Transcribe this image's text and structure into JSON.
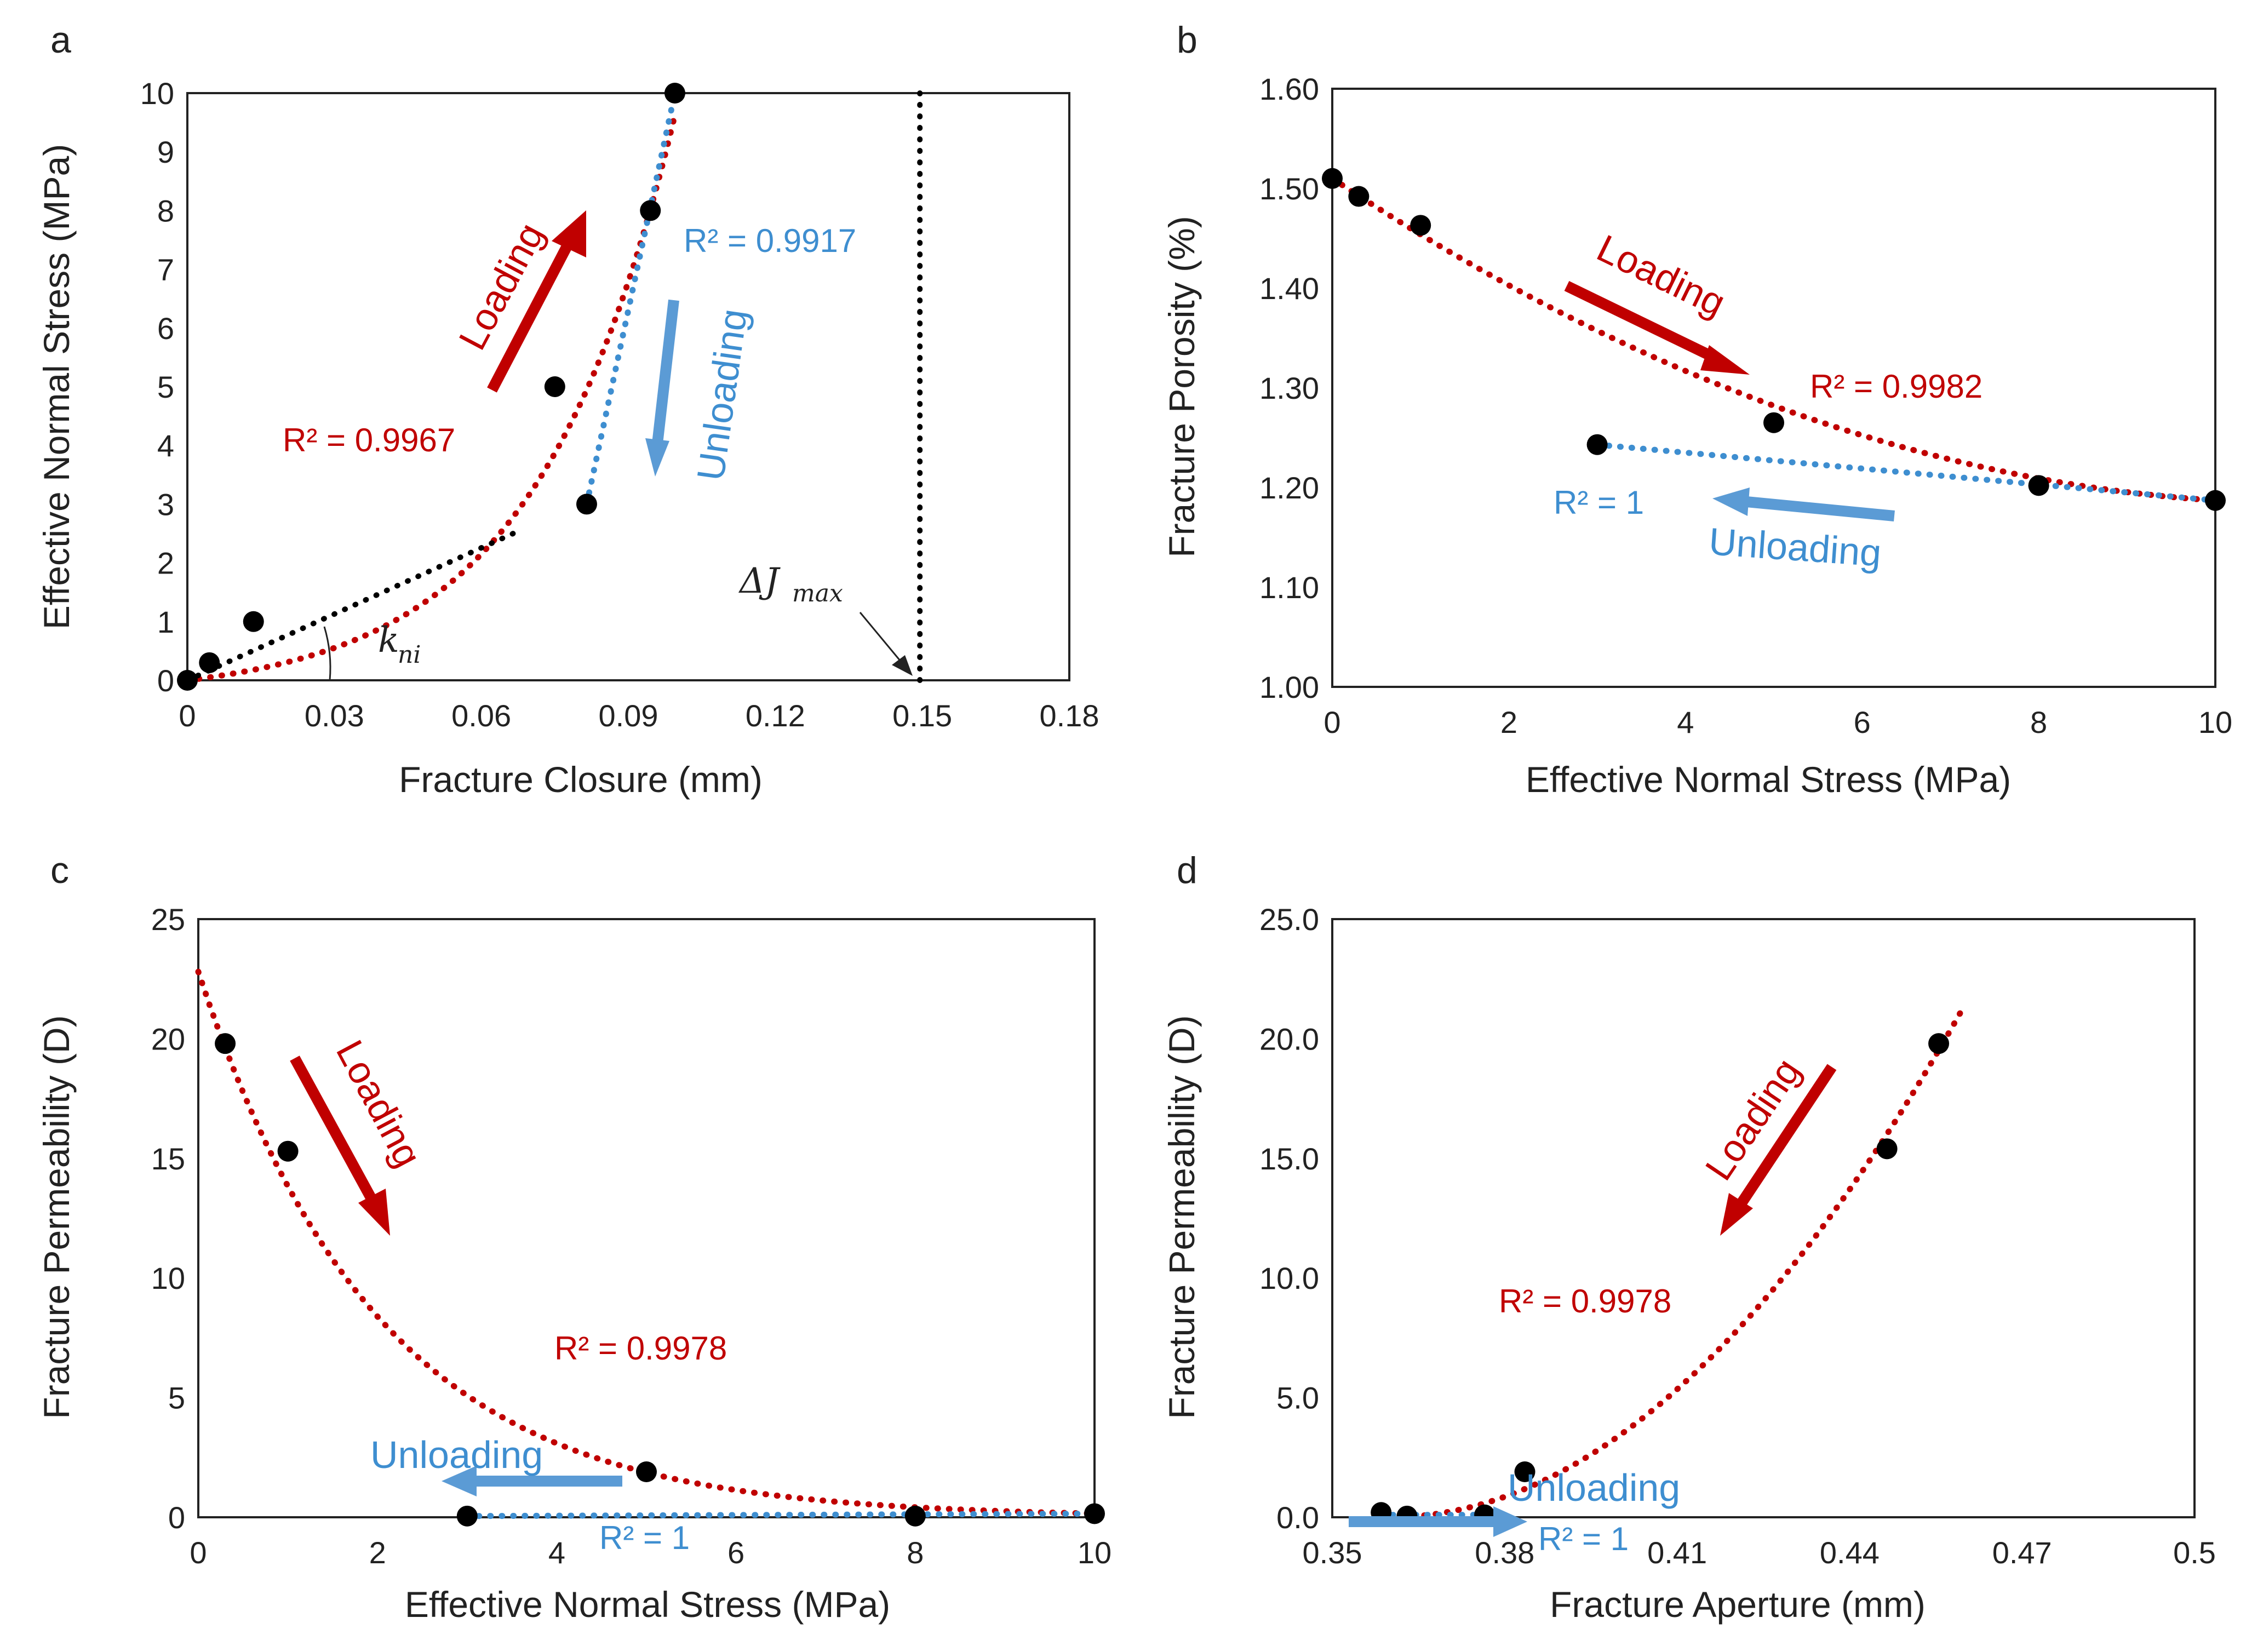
{
  "colors": {
    "loading": "#C00000",
    "unloading": "#3E8ED0",
    "marker": "#000000",
    "axis": "#222222",
    "tangent": "#000000"
  },
  "chart_data": [
    {
      "panel": "a",
      "type": "scatter",
      "xlabel": "Fracture Closure (mm)",
      "ylabel": "Effective Normal Stress (MPa)",
      "xlim": [
        0,
        0.18
      ],
      "ylim": [
        0,
        10
      ],
      "xticks": [
        0,
        0.03,
        0.06,
        0.09,
        0.12,
        0.15,
        0.18
      ],
      "xtick_labels": [
        "0",
        "0.03",
        "0.06",
        "0.09",
        "0.12",
        "0.15",
        "0.18"
      ],
      "yticks": [
        0,
        1,
        2,
        3,
        4,
        5,
        6,
        7,
        8,
        9,
        10
      ],
      "ytick_labels": [
        "0",
        "1",
        "2",
        "3",
        "4",
        "5",
        "6",
        "7",
        "8",
        "9",
        "10"
      ],
      "points": [
        {
          "x": 0,
          "y": 0
        },
        {
          "x": 0.0045,
          "y": 0.3
        },
        {
          "x": 0.0135,
          "y": 1.0
        },
        {
          "x": 0.075,
          "y": 5.0
        },
        {
          "x": 0.0815,
          "y": 3.0
        },
        {
          "x": 0.0945,
          "y": 8.0
        },
        {
          "x": 0.0995,
          "y": 10.0
        }
      ],
      "series": [
        {
          "name": "Loading",
          "color": "loading",
          "fit": "exp",
          "a": 0.29,
          "b": 35.5,
          "xrange": [
            0,
            0.0995
          ],
          "r2": "R² = 0.9967"
        },
        {
          "name": "Unloading",
          "color": "unloading",
          "fit": "line",
          "line": [
            [
              0.0815,
              3.0
            ],
            [
              0.0995,
              10.0
            ]
          ],
          "r2": "R² = 0.9917"
        },
        {
          "name": "tangent",
          "color": "tangent",
          "fit": "line",
          "line": [
            [
              0,
              0
            ],
            [
              0.0665,
              2.5
            ]
          ]
        },
        {
          "name": "max",
          "color": "tangent",
          "fit": "line",
          "line": [
            [
              0.1495,
              0
            ],
            [
              0.1495,
              10
            ]
          ]
        }
      ],
      "annotations": {
        "loading_label": "Loading",
        "unloading_label": "Unloading",
        "r2_loading": "R² = 0.9967",
        "r2_unloading": "R² = 0.9917",
        "kni_main": "k",
        "kni_sub": "ni",
        "djmax_main": "ΔJ",
        "djmax_sub": "max"
      }
    },
    {
      "panel": "b",
      "type": "scatter",
      "xlabel": "Effective Normal Stress (MPa)",
      "ylabel": "Fracture Porosity (%)",
      "xlim": [
        0,
        10
      ],
      "ylim": [
        1.0,
        1.6
      ],
      "xticks": [
        0,
        2,
        4,
        6,
        8,
        10
      ],
      "xtick_labels": [
        "0",
        "2",
        "4",
        "6",
        "8",
        "10"
      ],
      "yticks": [
        1.0,
        1.1,
        1.2,
        1.3,
        1.4,
        1.5,
        1.6
      ],
      "ytick_labels": [
        "1.00",
        "1.10",
        "1.20",
        "1.30",
        "1.40",
        "1.50",
        "1.60"
      ],
      "points": [
        {
          "x": 0,
          "y": 1.51
        },
        {
          "x": 0.3,
          "y": 1.492
        },
        {
          "x": 1.0,
          "y": 1.463
        },
        {
          "x": 3.0,
          "y": 1.243
        },
        {
          "x": 5.0,
          "y": 1.265
        },
        {
          "x": 8.0,
          "y": 1.202
        },
        {
          "x": 10.0,
          "y": 1.187
        }
      ],
      "series": [
        {
          "name": "Loading",
          "color": "loading",
          "fit": "poly2",
          "coef": [
            1.51,
            -0.0589,
            0.00266
          ],
          "xrange": [
            0,
            10
          ],
          "r2": "R² = 0.9982"
        },
        {
          "name": "Unloading",
          "color": "unloading",
          "fit": "line",
          "line": [
            [
              3.0,
              1.243
            ],
            [
              10.0,
              1.187
            ]
          ],
          "r2": "R² = 1"
        }
      ],
      "annotations": {
        "loading_label": "Loading",
        "unloading_label": "Unloading",
        "r2_loading": "R² = 0.9982",
        "r2_unloading": "R² = 1"
      }
    },
    {
      "panel": "c",
      "type": "scatter",
      "xlabel": "Effective Normal Stress (MPa)",
      "ylabel": "Fracture Permeability (D)",
      "xlim": [
        0,
        10
      ],
      "ylim": [
        0,
        25
      ],
      "xticks": [
        0,
        2,
        4,
        6,
        8,
        10
      ],
      "xtick_labels": [
        "0",
        "2",
        "4",
        "6",
        "8",
        "10"
      ],
      "yticks": [
        0,
        5,
        10,
        15,
        20,
        25
      ],
      "ytick_labels": [
        "0",
        "5",
        "10",
        "15",
        "20",
        "25"
      ],
      "points": [
        {
          "x": 0.3,
          "y": 19.8
        },
        {
          "x": 1.0,
          "y": 15.3
        },
        {
          "x": 3.0,
          "y": 0.05
        },
        {
          "x": 5.0,
          "y": 1.9
        },
        {
          "x": 8.0,
          "y": 0.05
        },
        {
          "x": 10.0,
          "y": 0.15
        }
      ],
      "series": [
        {
          "name": "Loading",
          "color": "loading",
          "fit": "exp",
          "a": 22.8,
          "b": -0.5,
          "xrange": [
            0,
            10
          ],
          "r2": "R² = 0.9978"
        },
        {
          "name": "Unloading",
          "color": "unloading",
          "fit": "line",
          "line": [
            [
              3.0,
              0.05
            ],
            [
              10.0,
              0.15
            ]
          ],
          "r2": "R² = 1"
        }
      ],
      "annotations": {
        "loading_label": "Loading",
        "unloading_label": "Unloading",
        "r2_loading": "R² = 0.9978",
        "r2_unloading": "R² = 1"
      }
    },
    {
      "panel": "d",
      "type": "scatter",
      "xlabel": "Fracture Aperture (mm)",
      "ylabel": "Fracture Permeability (D)",
      "xlim": [
        0.35,
        0.5
      ],
      "ylim": [
        0,
        25
      ],
      "xticks": [
        0.35,
        0.38,
        0.41,
        0.44,
        0.47,
        0.5
      ],
      "xtick_labels": [
        "0.35",
        "0.38",
        "0.41",
        "0.44",
        "0.47",
        "0.5"
      ],
      "yticks": [
        0,
        5,
        10,
        15,
        20,
        25
      ],
      "ytick_labels": [
        "0.0",
        "5.0",
        "10.0",
        "15.0",
        "20.0",
        "25.0"
      ],
      "points": [
        {
          "x": 0.3585,
          "y": 0.2
        },
        {
          "x": 0.363,
          "y": 0.05
        },
        {
          "x": 0.3765,
          "y": 0.1
        },
        {
          "x": 0.3835,
          "y": 1.9
        },
        {
          "x": 0.4465,
          "y": 15.4
        },
        {
          "x": 0.4555,
          "y": 19.8
        }
      ],
      "series": [
        {
          "name": "Loading",
          "color": "loading",
          "fit": "poly2",
          "coef": [
            0,
            0,
            2140
          ],
          "offset": 0.36,
          "xrange": [
            0.358,
            0.46
          ],
          "r2": "R² = 0.9978"
        },
        {
          "name": "Unloading",
          "color": "unloading",
          "fit": "line",
          "line": [
            [
              0.3585,
              0.1
            ],
            [
              0.3765,
              0.1
            ]
          ],
          "r2": "R² = 1"
        }
      ],
      "annotations": {
        "loading_label": "Loading",
        "unloading_label": "Unloading",
        "r2_loading": "R² = 0.9978",
        "r2_unloading": "R² = 1"
      }
    }
  ]
}
